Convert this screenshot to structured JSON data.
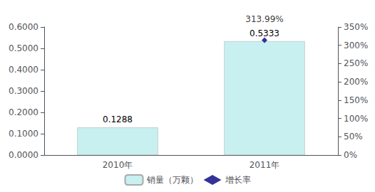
{
  "chart_data": {
    "type": "bar",
    "categories": [
      "2010年",
      "2011年"
    ],
    "series": [
      {
        "name": "销量（万颗）",
        "type": "bar",
        "color": "#c8f0f0",
        "values": [
          0.1288,
          0.5333
        ],
        "data_labels": true
      },
      {
        "name": "增长率",
        "type": "scatter",
        "axis": "y2",
        "color": "#000080",
        "marker": "diamond",
        "values": [
          null,
          313.99
        ],
        "value_labels": [
          null,
          "313.99%"
        ],
        "data_labels": true
      }
    ],
    "ylim": [
      0,
      0.6
    ],
    "yticks": [
      {
        "value": 0.0,
        "label": "0.0000"
      },
      {
        "value": 0.1,
        "label": "0.1000"
      },
      {
        "value": 0.2,
        "label": "0.2000"
      },
      {
        "value": 0.3,
        "label": "0.3000"
      },
      {
        "value": 0.4,
        "label": "0.4000"
      },
      {
        "value": 0.5,
        "label": "0.5000"
      },
      {
        "value": 0.6,
        "label": "0.6000"
      }
    ],
    "y2lim": [
      0,
      350
    ],
    "y2ticks": [
      {
        "value": 0,
        "label": "0%"
      },
      {
        "value": 50,
        "label": "50%"
      },
      {
        "value": 100,
        "label": "100%"
      },
      {
        "value": 150,
        "label": "150%"
      },
      {
        "value": 200,
        "label": "200%"
      },
      {
        "value": 250,
        "label": "250%"
      },
      {
        "value": 300,
        "label": "300%"
      },
      {
        "value": 350,
        "label": "350%"
      }
    ],
    "grid": false,
    "legend": "bottom"
  }
}
